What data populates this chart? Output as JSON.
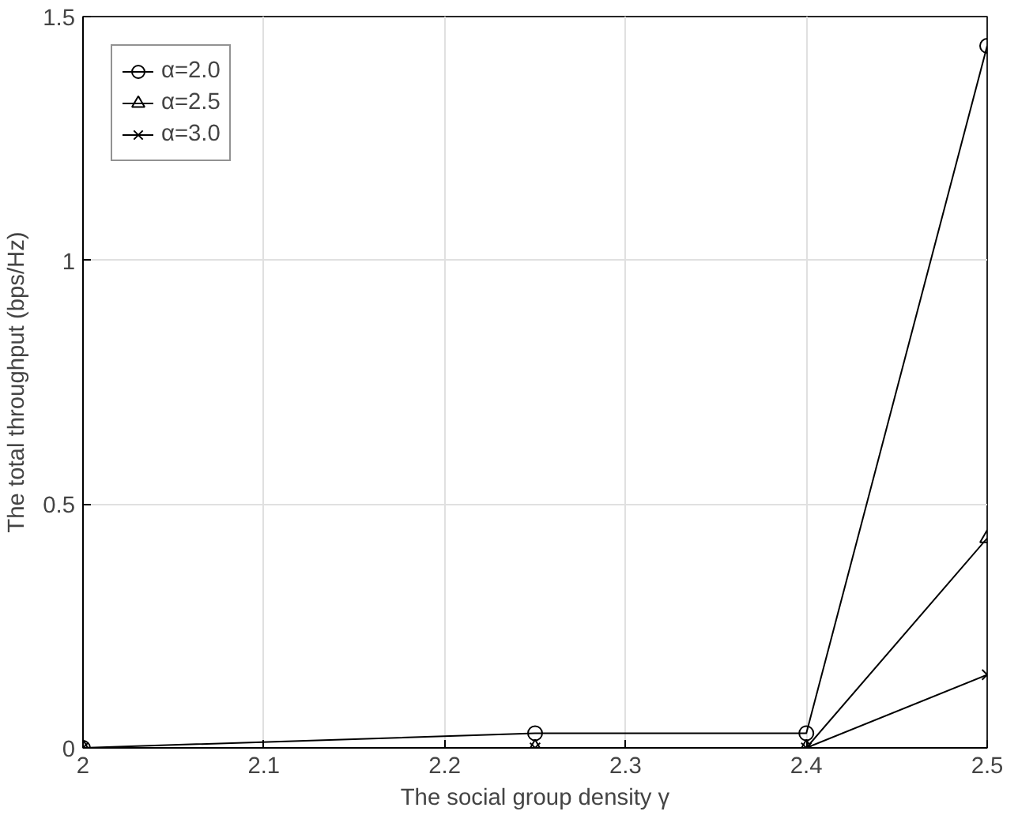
{
  "chart_data": {
    "type": "line",
    "xlabel": "The social group density γ",
    "ylabel": "The total throughput (bps/Hz)",
    "x": [
      2,
      2.25,
      2.4,
      2.5
    ],
    "series": [
      {
        "name": "α=2.0",
        "color": "#000000",
        "marker": "circle",
        "values": [
          0,
          0.03,
          0.03,
          1.44
        ]
      },
      {
        "name": "α=2.5",
        "color": "#000000",
        "marker": "triangle",
        "values": [
          0,
          0,
          0,
          0.43
        ]
      },
      {
        "name": "α=3.0",
        "color": "#000000",
        "marker": "cross",
        "values": [
          0,
          0,
          0,
          0.15
        ]
      }
    ],
    "xlim": [
      2,
      2.5
    ],
    "xticks": [
      2,
      2.1,
      2.2,
      2.3,
      2.4,
      2.5
    ],
    "ylim": [
      0,
      1.5
    ],
    "yticks": [
      0,
      0.5,
      1,
      1.5
    ],
    "grid": true,
    "legend": "top left",
    "line_style": "solid"
  }
}
